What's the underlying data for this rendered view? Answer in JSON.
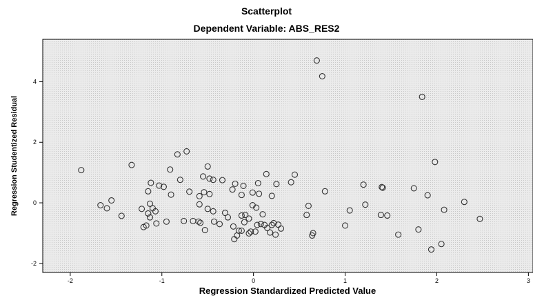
{
  "chart_data": {
    "type": "scatter",
    "title": "Scatterplot",
    "subtitle": "Dependent Variable: ABS_RES2",
    "xlabel": "Regression Standardized Predicted Value",
    "ylabel": "Regression Studentized Residual",
    "xlim": [
      -2.3,
      3.05
    ],
    "ylim": [
      -2.3,
      5.4
    ],
    "xticks": [
      -2,
      -1,
      0,
      1,
      2,
      3
    ],
    "yticks": [
      -2,
      0,
      2,
      4
    ],
    "grid": false,
    "colors": {
      "plot_background": "#ebebeb",
      "marker": "#333333"
    },
    "points": [
      {
        "x": 0.69,
        "y": 4.7
      },
      {
        "x": 0.75,
        "y": 4.18
      },
      {
        "x": 1.84,
        "y": 3.5
      },
      {
        "x": 1.98,
        "y": 1.35
      },
      {
        "x": -1.88,
        "y": 1.08
      },
      {
        "x": -1.33,
        "y": 1.25
      },
      {
        "x": -0.83,
        "y": 1.6
      },
      {
        "x": -0.73,
        "y": 1.7
      },
      {
        "x": -0.91,
        "y": 1.1
      },
      {
        "x": -0.5,
        "y": 1.2
      },
      {
        "x": 0.14,
        "y": 0.95
      },
      {
        "x": 0.45,
        "y": 0.93
      },
      {
        "x": -0.55,
        "y": 0.87
      },
      {
        "x": -0.48,
        "y": 0.8
      },
      {
        "x": -0.44,
        "y": 0.76
      },
      {
        "x": -0.34,
        "y": 0.75
      },
      {
        "x": -0.8,
        "y": 0.76
      },
      {
        "x": -1.12,
        "y": 0.66
      },
      {
        "x": -1.03,
        "y": 0.57
      },
      {
        "x": -0.98,
        "y": 0.53
      },
      {
        "x": -0.2,
        "y": 0.63
      },
      {
        "x": 0.05,
        "y": 0.65
      },
      {
        "x": 0.25,
        "y": 0.62
      },
      {
        "x": 0.41,
        "y": 0.68
      },
      {
        "x": -0.11,
        "y": 0.56
      },
      {
        "x": -0.23,
        "y": 0.44
      },
      {
        "x": -0.7,
        "y": 0.37
      },
      {
        "x": -0.9,
        "y": 0.27
      },
      {
        "x": -0.54,
        "y": 0.35
      },
      {
        "x": -0.48,
        "y": 0.29
      },
      {
        "x": -0.59,
        "y": 0.22
      },
      {
        "x": -1.15,
        "y": 0.38
      },
      {
        "x": -0.01,
        "y": 0.34
      },
      {
        "x": 0.06,
        "y": 0.3
      },
      {
        "x": 0.2,
        "y": 0.23
      },
      {
        "x": -0.13,
        "y": 0.26
      },
      {
        "x": 0.78,
        "y": 0.38
      },
      {
        "x": 1.2,
        "y": 0.6
      },
      {
        "x": 1.4,
        "y": 0.52
      },
      {
        "x": 1.41,
        "y": 0.5
      },
      {
        "x": 1.75,
        "y": 0.48
      },
      {
        "x": 1.9,
        "y": 0.25
      },
      {
        "x": -1.55,
        "y": 0.08
      },
      {
        "x": -1.67,
        "y": -0.08
      },
      {
        "x": -1.6,
        "y": -0.18
      },
      {
        "x": -1.44,
        "y": -0.43
      },
      {
        "x": -1.22,
        "y": -0.2
      },
      {
        "x": -1.13,
        "y": -0.03
      },
      {
        "x": -1.1,
        "y": -0.18
      },
      {
        "x": -1.07,
        "y": -0.28
      },
      {
        "x": -1.15,
        "y": -0.35
      },
      {
        "x": -1.13,
        "y": -0.48
      },
      {
        "x": -1.17,
        "y": -0.75
      },
      {
        "x": -1.2,
        "y": -0.8
      },
      {
        "x": -1.06,
        "y": -0.68
      },
      {
        "x": -0.95,
        "y": -0.62
      },
      {
        "x": -0.76,
        "y": -0.6
      },
      {
        "x": -0.66,
        "y": -0.6
      },
      {
        "x": -0.6,
        "y": -0.62
      },
      {
        "x": -0.58,
        "y": -0.66
      },
      {
        "x": -0.53,
        "y": -0.9
      },
      {
        "x": -0.43,
        "y": -0.62
      },
      {
        "x": -0.37,
        "y": -0.7
      },
      {
        "x": -0.59,
        "y": -0.05
      },
      {
        "x": -0.5,
        "y": -0.2
      },
      {
        "x": -0.44,
        "y": -0.28
      },
      {
        "x": -0.31,
        "y": -0.33
      },
      {
        "x": -0.28,
        "y": -0.48
      },
      {
        "x": -0.22,
        "y": -0.78
      },
      {
        "x": -0.16,
        "y": -0.92
      },
      {
        "x": -0.18,
        "y": -1.08
      },
      {
        "x": -0.21,
        "y": -1.2
      },
      {
        "x": -0.13,
        "y": -0.92
      },
      {
        "x": -0.1,
        "y": -0.64
      },
      {
        "x": -0.13,
        "y": -0.42
      },
      {
        "x": -0.09,
        "y": -0.4
      },
      {
        "x": -0.05,
        "y": -0.52
      },
      {
        "x": -0.03,
        "y": -0.95
      },
      {
        "x": -0.05,
        "y": -1.01
      },
      {
        "x": 0.02,
        "y": -0.95
      },
      {
        "x": 0.04,
        "y": -0.73
      },
      {
        "x": 0.08,
        "y": -0.7
      },
      {
        "x": 0.12,
        "y": -0.73
      },
      {
        "x": 0.15,
        "y": -0.83
      },
      {
        "x": 0.18,
        "y": -0.98
      },
      {
        "x": 0.2,
        "y": -0.73
      },
      {
        "x": 0.22,
        "y": -0.67
      },
      {
        "x": 0.27,
        "y": -0.72
      },
      {
        "x": 0.3,
        "y": -0.85
      },
      {
        "x": 0.24,
        "y": -1.05
      },
      {
        "x": 0.1,
        "y": -0.38
      },
      {
        "x": 0.03,
        "y": -0.16
      },
      {
        "x": -0.01,
        "y": -0.08
      },
      {
        "x": 0.6,
        "y": -0.1
      },
      {
        "x": 0.58,
        "y": -0.4
      },
      {
        "x": 0.65,
        "y": -1.0
      },
      {
        "x": 0.64,
        "y": -1.08
      },
      {
        "x": 1.0,
        "y": -0.75
      },
      {
        "x": 1.05,
        "y": -0.25
      },
      {
        "x": 1.22,
        "y": -0.06
      },
      {
        "x": 1.39,
        "y": -0.4
      },
      {
        "x": 1.46,
        "y": -0.42
      },
      {
        "x": 1.58,
        "y": -1.05
      },
      {
        "x": 1.8,
        "y": -0.88
      },
      {
        "x": 1.94,
        "y": -1.54
      },
      {
        "x": 2.05,
        "y": -1.36
      },
      {
        "x": 2.08,
        "y": -0.23
      },
      {
        "x": 2.3,
        "y": 0.03
      },
      {
        "x": 2.47,
        "y": -0.53
      }
    ]
  }
}
